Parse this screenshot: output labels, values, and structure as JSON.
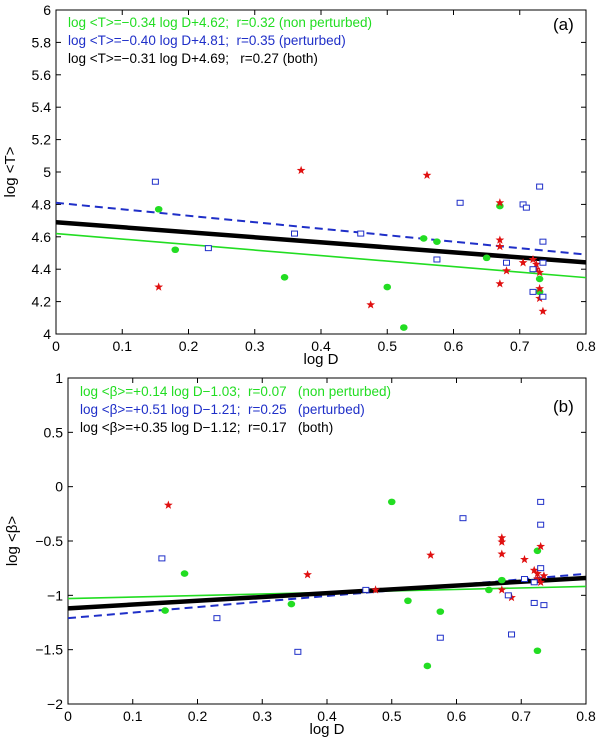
{
  "chart_data": [
    {
      "type": "scatter",
      "panel": "a",
      "panel_label": "(a)",
      "xlabel": "log D",
      "ylabel": "log <T>",
      "xlim": [
        0,
        0.8
      ],
      "ylim": [
        4,
        6
      ],
      "xticks": [
        0,
        0.1,
        0.2,
        0.3,
        0.4,
        0.5,
        0.6,
        0.7,
        0.8
      ],
      "yticks": [
        4,
        4.2,
        4.4,
        4.6,
        4.8,
        5,
        5.2,
        5.4,
        5.6,
        5.8,
        6
      ],
      "xtick_labels": [
        "0",
        "0.1",
        "0.2",
        "0.3",
        "0.4",
        "0.5",
        "0.6",
        "0.7",
        "0.8"
      ],
      "ytick_labels": [
        "4",
        "4.2",
        "4.4",
        "4.6",
        "4.8",
        "5",
        "5.2",
        "5.4",
        "5.6",
        "5.8",
        "6"
      ],
      "fits": [
        {
          "name": "non perturbed",
          "label": "log <T>=−0.34 log D+4.62;  r=0.32 (non perturbed)",
          "slope": -0.34,
          "intercept": 4.62,
          "color": "#22dd22",
          "style": "solid"
        },
        {
          "name": "perturbed",
          "label": "log <T>=−0.40 log D+4.81;  r=0.35 (perturbed)",
          "slope": -0.4,
          "intercept": 4.81,
          "color": "#1f2fc8",
          "style": "dashed"
        },
        {
          "name": "both",
          "label": "log <T>=−0.31 log D+4.69;   r=0.27 (both)",
          "slope": -0.31,
          "intercept": 4.69,
          "color": "#000000",
          "style": "thick"
        }
      ],
      "series": [
        {
          "name": "green circles",
          "marker": "circle",
          "color": "#22dd22",
          "points": [
            [
              0.155,
              4.77
            ],
            [
              0.18,
              4.52
            ],
            [
              0.345,
              4.35
            ],
            [
              0.5,
              4.29
            ],
            [
              0.525,
              4.04
            ],
            [
              0.555,
              4.59
            ],
            [
              0.575,
              4.57
            ],
            [
              0.65,
              4.47
            ],
            [
              0.67,
              4.79
            ],
            [
              0.73,
              4.26
            ],
            [
              0.73,
              4.34
            ]
          ]
        },
        {
          "name": "red stars",
          "marker": "star",
          "color": "#e01010",
          "points": [
            [
              0.155,
              4.29
            ],
            [
              0.37,
              5.01
            ],
            [
              0.475,
              4.18
            ],
            [
              0.56,
              4.98
            ],
            [
              0.67,
              4.81
            ],
            [
              0.67,
              4.58
            ],
            [
              0.67,
              4.54
            ],
            [
              0.67,
              4.31
            ],
            [
              0.68,
              4.39
            ],
            [
              0.705,
              4.44
            ],
            [
              0.72,
              4.46
            ],
            [
              0.725,
              4.43
            ],
            [
              0.725,
              4.4
            ],
            [
              0.73,
              4.38
            ],
            [
              0.73,
              4.28
            ],
            [
              0.73,
              4.22
            ],
            [
              0.735,
              4.14
            ]
          ]
        },
        {
          "name": "blue squares",
          "marker": "square",
          "color": "#1f2fc8",
          "points": [
            [
              0.15,
              4.94
            ],
            [
              0.23,
              4.53
            ],
            [
              0.36,
              4.62
            ],
            [
              0.46,
              4.62
            ],
            [
              0.575,
              4.46
            ],
            [
              0.61,
              4.81
            ],
            [
              0.68,
              4.44
            ],
            [
              0.705,
              4.8
            ],
            [
              0.71,
              4.78
            ],
            [
              0.72,
              4.4
            ],
            [
              0.72,
              4.26
            ],
            [
              0.73,
              4.91
            ],
            [
              0.735,
              4.57
            ],
            [
              0.735,
              4.23
            ],
            [
              0.735,
              4.44
            ]
          ]
        }
      ]
    },
    {
      "type": "scatter",
      "panel": "b",
      "panel_label": "(b)",
      "xlabel": "log D",
      "ylabel": "log <β>",
      "xlim": [
        0,
        0.8
      ],
      "ylim": [
        -2,
        1
      ],
      "xticks": [
        0,
        0.1,
        0.2,
        0.3,
        0.4,
        0.5,
        0.6,
        0.7,
        0.8
      ],
      "yticks": [
        -2,
        -1.5,
        -1,
        -0.5,
        0,
        0.5,
        1
      ],
      "xtick_labels": [
        "0",
        "0.1",
        "0.2",
        "0.3",
        "0.4",
        "0.5",
        "0.6",
        "0.7",
        "0.8"
      ],
      "ytick_labels": [
        "−2",
        "−1.5",
        "−1",
        "−0.5",
        "0",
        "0.5",
        "1"
      ],
      "fits": [
        {
          "name": "non perturbed",
          "label": "log <β>=+0.14 log D−1.03;  r=0.07   (non perturbed)",
          "slope": 0.14,
          "intercept": -1.03,
          "color": "#22dd22",
          "style": "solid"
        },
        {
          "name": "perturbed",
          "label": "log <β>=+0.51 log D−1.21;  r=0.25   (perturbed)",
          "slope": 0.51,
          "intercept": -1.21,
          "color": "#1f2fc8",
          "style": "dashed"
        },
        {
          "name": "both",
          "label": "log <β>=+0.35 log D−1.12;  r=0.17   (both)",
          "slope": 0.35,
          "intercept": -1.12,
          "color": "#000000",
          "style": "thick"
        }
      ],
      "series": [
        {
          "name": "green circles",
          "marker": "circle",
          "color": "#22dd22",
          "points": [
            [
              0.15,
              -1.14
            ],
            [
              0.18,
              -0.8
            ],
            [
              0.345,
              -1.08
            ],
            [
              0.5,
              -0.14
            ],
            [
              0.525,
              -1.05
            ],
            [
              0.555,
              -1.65
            ],
            [
              0.575,
              -1.15
            ],
            [
              0.65,
              -0.95
            ],
            [
              0.67,
              -0.86
            ],
            [
              0.725,
              -0.59
            ],
            [
              0.725,
              -1.51
            ]
          ]
        },
        {
          "name": "red stars",
          "marker": "star",
          "color": "#e01010",
          "points": [
            [
              0.155,
              -0.17
            ],
            [
              0.37,
              -0.81
            ],
            [
              0.475,
              -0.95
            ],
            [
              0.56,
              -0.63
            ],
            [
              0.67,
              -0.47
            ],
            [
              0.67,
              -0.51
            ],
            [
              0.67,
              -0.62
            ],
            [
              0.67,
              -0.95
            ],
            [
              0.685,
              -1.02
            ],
            [
              0.705,
              -0.67
            ],
            [
              0.72,
              -0.77
            ],
            [
              0.725,
              -0.8
            ],
            [
              0.725,
              -0.85
            ],
            [
              0.73,
              -0.55
            ],
            [
              0.73,
              -0.88
            ],
            [
              0.735,
              -0.82
            ]
          ]
        },
        {
          "name": "blue squares",
          "marker": "square",
          "color": "#1f2fc8",
          "points": [
            [
              0.145,
              -0.66
            ],
            [
              0.23,
              -1.21
            ],
            [
              0.355,
              -1.52
            ],
            [
              0.46,
              -0.95
            ],
            [
              0.575,
              -1.39
            ],
            [
              0.61,
              -0.29
            ],
            [
              0.68,
              -1.0
            ],
            [
              0.685,
              -1.36
            ],
            [
              0.705,
              -0.85
            ],
            [
              0.72,
              -0.88
            ],
            [
              0.72,
              -1.07
            ],
            [
              0.73,
              -0.14
            ],
            [
              0.73,
              -0.35
            ],
            [
              0.73,
              -0.75
            ],
            [
              0.735,
              -1.09
            ]
          ]
        }
      ]
    }
  ]
}
